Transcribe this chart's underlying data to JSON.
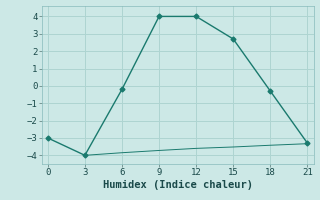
{
  "line1_x": [
    0,
    3,
    6,
    9,
    12,
    15,
    18,
    21
  ],
  "line1_y": [
    -3,
    -4,
    -0.2,
    4,
    4,
    2.7,
    -0.3,
    -3.3
  ],
  "line2_x": [
    3,
    6,
    9,
    12,
    15,
    18,
    21
  ],
  "line2_y": [
    -4.0,
    -3.85,
    -3.72,
    -3.6,
    -3.52,
    -3.42,
    -3.33
  ],
  "line_color": "#1a7a6e",
  "bg_color": "#cce8e6",
  "grid_color": "#aed4d1",
  "xlabel": "Humidex (Indice chaleur)",
  "ylim": [
    -4.5,
    4.6
  ],
  "xlim": [
    -0.5,
    21.5
  ],
  "xticks": [
    0,
    3,
    6,
    9,
    12,
    15,
    18,
    21
  ],
  "yticks": [
    -4,
    -3,
    -2,
    -1,
    0,
    1,
    2,
    3,
    4
  ],
  "xlabel_fontsize": 7.5,
  "tick_fontsize": 6.5
}
